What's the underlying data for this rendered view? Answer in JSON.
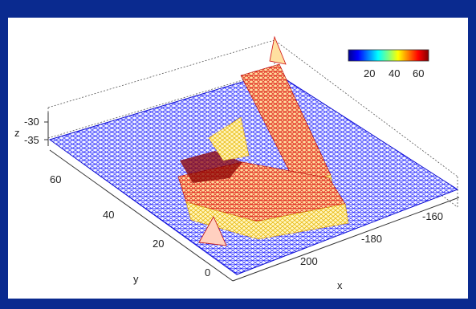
{
  "chart_data": {
    "type": "surface-mesh",
    "title": "",
    "xlabel": "x",
    "ylabel": "y",
    "zlabel": "z",
    "x_ticks": [
      "-160",
      "-180",
      "200"
    ],
    "y_ticks": [
      "0",
      "20",
      "40",
      "60"
    ],
    "z_ticks": [
      "-30",
      "-35"
    ],
    "colorbar": {
      "colormap": "jet",
      "ticks": [
        "20",
        "40",
        "60"
      ],
      "range": [
        10,
        65
      ]
    },
    "surface": {
      "base_level": "low (blue)",
      "raised_region_shape": "L-shaped plateau",
      "plateau_level": "high (yellow to red, ~50-65)"
    }
  }
}
